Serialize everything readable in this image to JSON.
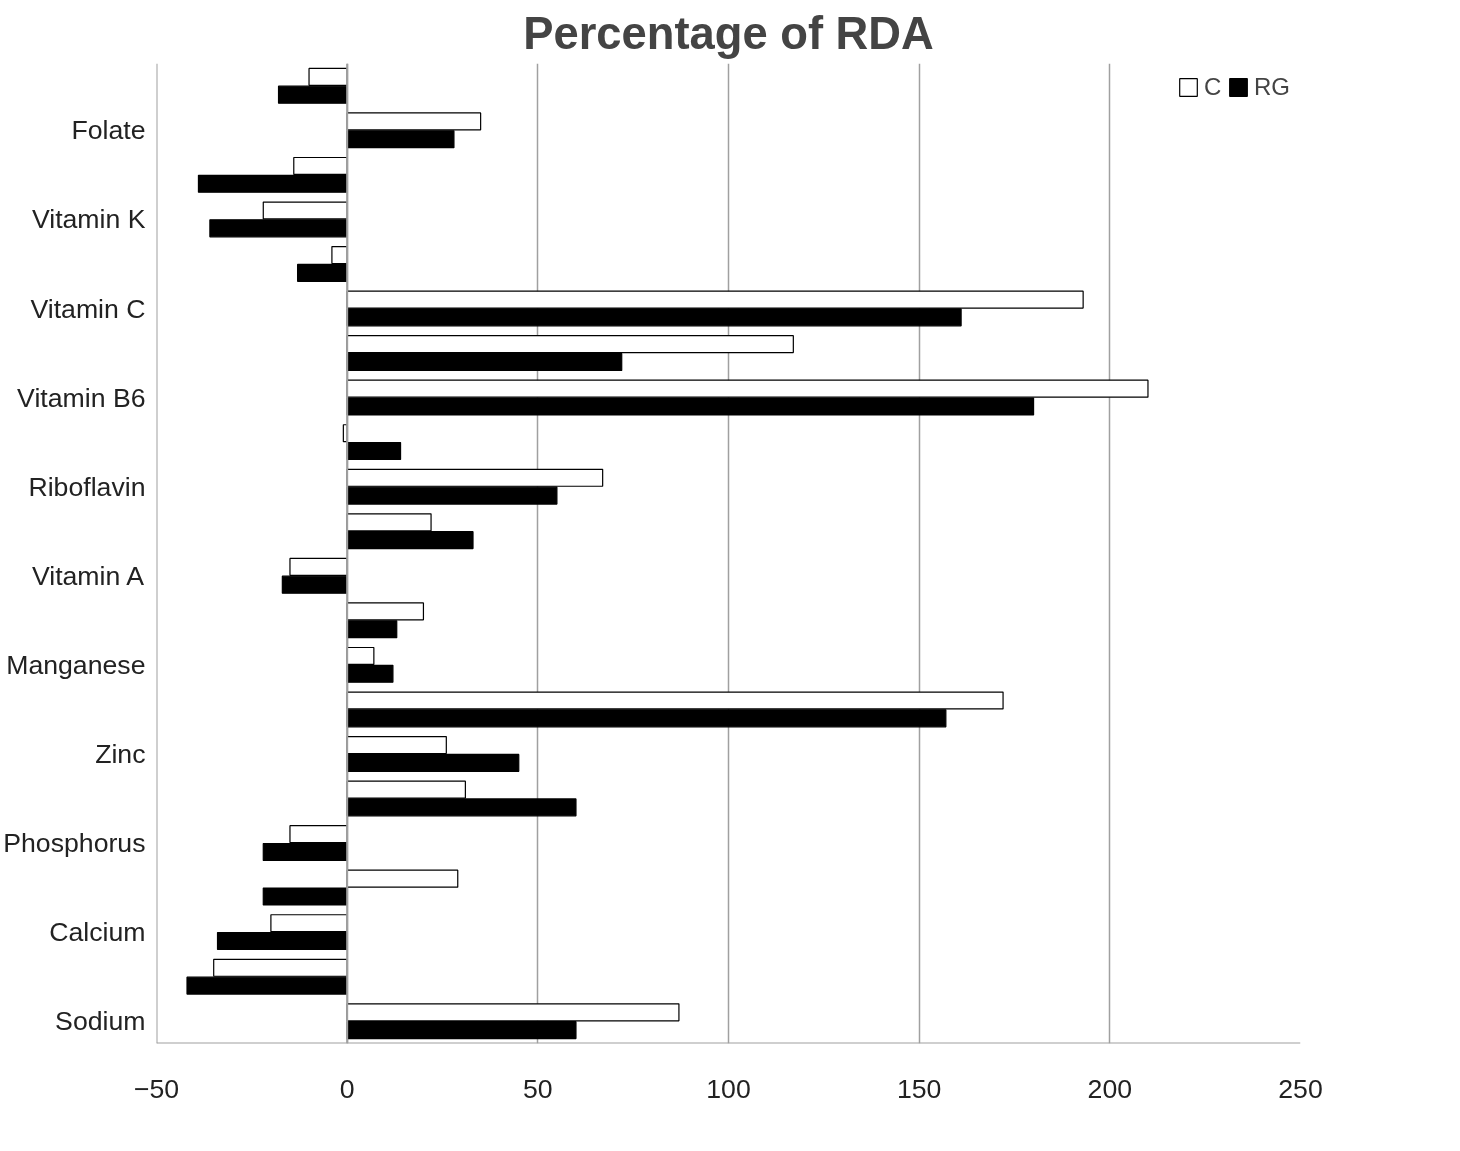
{
  "chart_data": {
    "type": "bar",
    "orientation": "horizontal",
    "title": "Percentage of RDA",
    "categories": [
      null,
      "Folate",
      null,
      "Vitamin K",
      null,
      "Vitamin C",
      null,
      "Vitamin B6",
      null,
      "Riboflavin",
      null,
      "Vitamin A",
      null,
      "Manganese",
      null,
      "Zinc",
      null,
      "Phosphorus",
      null,
      "Calcium",
      null,
      "Sodium"
    ],
    "series": [
      {
        "name": "C",
        "color": "#ffffff",
        "values": [
          -10,
          35,
          -14,
          -22,
          -4,
          193,
          117,
          210,
          -1,
          67,
          22,
          -15,
          20,
          7,
          172,
          26,
          31,
          -15,
          29,
          -20,
          -35,
          87
        ]
      },
      {
        "name": "RG",
        "color": "#000000",
        "values": [
          -18,
          28,
          -39,
          -36,
          -13,
          161,
          72,
          180,
          14,
          55,
          33,
          -17,
          13,
          12,
          157,
          45,
          60,
          -22,
          -22,
          -34,
          -42,
          60
        ]
      }
    ],
    "xlim": [
      -50,
      250
    ],
    "xticks": [
      -50,
      0,
      50,
      100,
      150,
      200,
      250
    ],
    "grid": "x",
    "legend": "top right"
  }
}
